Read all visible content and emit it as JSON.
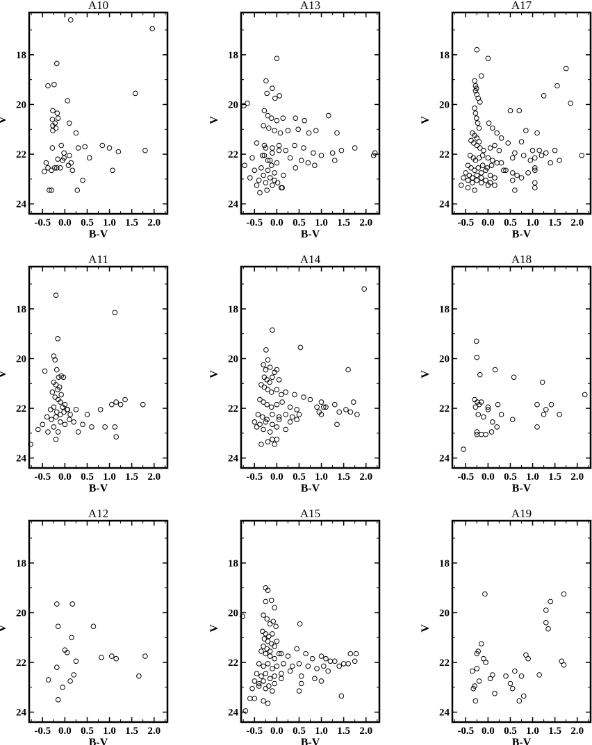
{
  "chart_data": [
    {
      "type": "scatter",
      "title": "A10",
      "xlabel": "B-V",
      "ylabel": "V",
      "xlim": [
        -0.8,
        2.3
      ],
      "ylim": [
        24.4,
        16.3
      ],
      "y_inverted": true,
      "xticks": [
        "-0.5",
        "0.0",
        "0.5",
        "1.0",
        "1.5",
        "2.0"
      ],
      "yticks": [
        "18",
        "20",
        "22",
        "24"
      ],
      "x": [
        0.13,
        1.96,
        -0.18,
        -0.38,
        -0.24,
        0.06,
        -0.27,
        -0.17,
        -0.28,
        -0.27,
        -0.2,
        -0.27,
        -0.22,
        -0.15,
        0.1,
        0.25,
        1.58,
        1.8,
        -0.28,
        -0.08,
        -0.02,
        0.1,
        0.3,
        0.45,
        0.84,
        1,
        1.2,
        0.14,
        -0.02,
        -0.05,
        -0.16,
        -0.42,
        -0.38,
        -0.18,
        -0.46,
        -0.3,
        -0.23,
        0.08,
        -0.1,
        0.17,
        0.55,
        1.07,
        0.4,
        0.28,
        -0.3,
        -0.35
      ],
      "y": [
        16.6,
        16.95,
        18.35,
        19.25,
        19.2,
        19.85,
        20.25,
        20.35,
        20.6,
        20.85,
        20.95,
        21.05,
        20.75,
        20.55,
        20.75,
        21.15,
        19.55,
        21.85,
        21.75,
        21.65,
        21.95,
        22.05,
        21.75,
        21.7,
        21.65,
        21.75,
        21.9,
        22.35,
        22.15,
        22.25,
        22.2,
        22.35,
        22.55,
        22.55,
        22.7,
        22.65,
        22.55,
        22.45,
        22.55,
        22.65,
        22.15,
        22.65,
        23.05,
        23.45,
        23.45,
        23.45
      ]
    },
    {
      "type": "scatter",
      "title": "A13",
      "xlabel": "B-V",
      "ylabel": "V",
      "xlim": [
        -0.8,
        2.3
      ],
      "ylim": [
        24.4,
        16.3
      ],
      "y_inverted": true,
      "xticks": [
        "-0.5",
        "0.0",
        "0.5",
        "1.0",
        "1.5",
        "2.0"
      ],
      "yticks": [
        "18",
        "20",
        "22",
        "24"
      ],
      "x": [
        0,
        -0.24,
        -0.1,
        -0.04,
        -0.22,
        0.06,
        -0.74,
        -0.66,
        -0.28,
        -0.2,
        -0.12,
        0.0,
        0.14,
        0.42,
        0.62,
        1.16,
        -0.3,
        -0.18,
        -0.05,
        0.08,
        0.25,
        0.48,
        0.72,
        0.88,
        1.35,
        1.75,
        2.17,
        -0.45,
        -0.28,
        -0.1,
        0.05,
        0.2,
        0.4,
        0.6,
        0.82,
        1.0,
        1.25,
        1.45,
        2.2,
        -0.55,
        -0.32,
        -0.15,
        0.0,
        0.3,
        0.55,
        0.7,
        0.85,
        1.3,
        -0.72,
        -0.5,
        -0.35,
        -0.2,
        -0.05,
        0.15,
        0.42,
        -0.6,
        -0.4,
        -0.25,
        -0.1,
        0.1,
        -0.15,
        -0.3,
        -0.45,
        -0.05,
        0.12,
        -0.22,
        -0.38,
        0.02,
        -0.12,
        -0.2,
        -0.28,
        -0.1,
        0.05,
        -0.25
      ],
      "y": [
        18.15,
        19.05,
        19.35,
        19.75,
        19.55,
        19.65,
        20.05,
        19.95,
        20.25,
        20.45,
        20.55,
        20.65,
        20.55,
        20.55,
        20.65,
        20.45,
        20.85,
        20.95,
        21.05,
        21.15,
        21.05,
        21.0,
        21.15,
        21.05,
        21.15,
        21.75,
        22.05,
        21.55,
        21.65,
        21.75,
        21.65,
        21.85,
        21.65,
        21.75,
        21.95,
        22.05,
        21.95,
        21.85,
        21.95,
        22.15,
        22.05,
        22.25,
        22.35,
        22.15,
        22.25,
        22.35,
        22.45,
        22.25,
        22.45,
        22.65,
        22.55,
        22.65,
        22.75,
        22.85,
        22.55,
        22.95,
        23.05,
        23.15,
        23.25,
        23.35,
        22.95,
        22.85,
        23.25,
        23.05,
        23.35,
        23.45,
        23.55,
        23.15,
        22.45,
        22.25,
        22.05,
        21.95,
        21.85,
        21.75
      ]
    },
    {
      "type": "scatter",
      "title": "A17",
      "xlabel": "B-V",
      "ylabel": "V",
      "xlim": [
        -0.8,
        2.3
      ],
      "ylim": [
        24.4,
        16.3
      ],
      "y_inverted": true,
      "xticks": [
        "-0.5",
        "0.0",
        "0.5",
        "1.0",
        "1.5",
        "2.0"
      ],
      "yticks": [
        "18",
        "20",
        "22",
        "24"
      ],
      "x": [
        -0.25,
        0,
        -0.15,
        -0.3,
        -0.28,
        -0.26,
        -0.28,
        -0.25,
        -0.22,
        -0.18,
        -0.3,
        -0.28,
        -0.26,
        -0.23,
        -0.2,
        -0.35,
        -0.3,
        -0.25,
        -0.2,
        0.02,
        0.1,
        0.2,
        0.3,
        0.5,
        0.7,
        0.85,
        1.1,
        1.25,
        1.55,
        1.75,
        1.85,
        -0.38,
        -0.32,
        -0.25,
        -0.18,
        -0.1,
        0.05,
        0.15,
        0.25,
        0.45,
        0.6,
        0.75,
        1.0,
        1.15,
        1.3,
        1.5,
        -0.4,
        -0.33,
        -0.28,
        -0.2,
        -0.12,
        0.0,
        0.1,
        0.3,
        0.55,
        0.8,
        0.95,
        1.05,
        1.2,
        1.4,
        1.6,
        2.1,
        -0.45,
        -0.38,
        -0.3,
        -0.22,
        -0.12,
        -0.02,
        0.08,
        0.2,
        0.4,
        0.65,
        0.9,
        1.05,
        -0.5,
        -0.42,
        -0.35,
        -0.25,
        -0.15,
        -0.05,
        0.05,
        0.15,
        0.35,
        0.55,
        0.75,
        1.05,
        -0.55,
        -0.45,
        -0.35,
        -0.25,
        -0.15,
        -0.05,
        0.05,
        0.15,
        0.55,
        1.05,
        -0.6,
        -0.45,
        -0.3,
        -0.15,
        0.0,
        0.6,
        1.05
      ],
      "y": [
        17.8,
        18.15,
        18.85,
        19.05,
        19.25,
        19.35,
        19.45,
        19.6,
        19.75,
        19.9,
        20.15,
        20.35,
        20.55,
        20.75,
        20.95,
        21.15,
        21.25,
        21.35,
        21.5,
        20.75,
        20.95,
        21.15,
        21.35,
        20.25,
        20.25,
        21.05,
        21.15,
        19.65,
        19.25,
        18.55,
        19.95,
        21.45,
        21.55,
        21.65,
        21.75,
        21.85,
        21.75,
        21.65,
        21.85,
        21.55,
        21.95,
        21.5,
        21.85,
        21.85,
        21.95,
        21.85,
        22.05,
        22.15,
        22.25,
        22.15,
        22.05,
        22.15,
        22.25,
        22.35,
        22.15,
        22.05,
        22.25,
        22.15,
        22.05,
        22.35,
        22.25,
        22.05,
        22.45,
        22.55,
        22.65,
        22.55,
        22.45,
        22.55,
        22.45,
        22.35,
        22.65,
        22.85,
        22.75,
        22.55,
        22.75,
        22.85,
        22.95,
        22.85,
        22.75,
        22.65,
        22.85,
        22.95,
        22.65,
        22.75,
        22.95,
        22.65,
        22.95,
        23.05,
        23.15,
        23.05,
        22.95,
        23.05,
        23.15,
        23.25,
        23.05,
        23.15,
        23.25,
        23.35,
        23.45,
        23.15,
        23.25,
        23.45,
        23.35
      ]
    },
    {
      "type": "scatter",
      "title": "A11",
      "xlabel": "B-V",
      "ylabel": "V",
      "xlim": [
        -0.8,
        2.3
      ],
      "ylim": [
        24.4,
        16.3
      ],
      "y_inverted": true,
      "xticks": [
        "-0.5",
        "0.0",
        "0.5",
        "1.0",
        "1.5",
        "2.0"
      ],
      "yticks": [
        "18",
        "20",
        "22",
        "24"
      ],
      "x": [
        -0.2,
        1.12,
        -0.16,
        -0.25,
        -0.22,
        -0.18,
        -0.14,
        -0.08,
        -0.03,
        -0.45,
        -0.25,
        -0.2,
        -0.16,
        -0.12,
        -0.08,
        -0.28,
        -0.22,
        -0.15,
        -0.1,
        -0.05,
        0.0,
        0.06,
        -0.32,
        -0.25,
        -0.18,
        -0.1,
        -0.02,
        0.05,
        0.12,
        0.25,
        0.5,
        0.8,
        1.05,
        1.15,
        1.25,
        1.35,
        1.75,
        -0.4,
        -0.3,
        -0.2,
        -0.1,
        0.0,
        0.1,
        0.2,
        0.4,
        0.6,
        0.9,
        1.12,
        -0.6,
        -0.5,
        -0.38,
        -0.25,
        -0.15,
        0.3,
        -0.78,
        -0.2,
        1.15
      ],
      "y": [
        17.45,
        18.15,
        19.2,
        19.9,
        20.05,
        20.45,
        20.75,
        20.7,
        20.75,
        20.5,
        20.95,
        21.05,
        21.25,
        21.15,
        21.45,
        21.35,
        21.55,
        21.65,
        21.75,
        21.95,
        21.85,
        22.05,
        22.05,
        21.95,
        22.15,
        22.25,
        22.15,
        22.05,
        22.25,
        22.05,
        22.25,
        22.05,
        21.85,
        21.75,
        21.85,
        21.65,
        21.85,
        22.35,
        22.45,
        22.35,
        22.55,
        22.65,
        22.45,
        22.55,
        22.65,
        22.75,
        22.75,
        22.75,
        22.85,
        22.65,
        22.95,
        22.75,
        22.95,
        22.95,
        23.45,
        23.25,
        23.15
      ]
    },
    {
      "type": "scatter",
      "title": "A14",
      "xlabel": "B-V",
      "ylabel": "V",
      "xlim": [
        -0.8,
        2.3
      ],
      "ylim": [
        24.4,
        16.3
      ],
      "y_inverted": true,
      "xticks": [
        "-0.5",
        "0.0",
        "0.5",
        "1.0",
        "1.5",
        "2.0"
      ],
      "yticks": [
        "18",
        "20",
        "22",
        "24"
      ],
      "x": [
        1.96,
        -0.1,
        0.53,
        -0.24,
        -0.2,
        -0.3,
        -0.25,
        -0.15,
        -0.05,
        0.0,
        -0.28,
        -0.22,
        -0.16,
        -0.1,
        0.05,
        -0.35,
        -0.28,
        -0.2,
        -0.12,
        0.0,
        0.1,
        0.2,
        0.4,
        0.6,
        0.75,
        1.0,
        1.1,
        1.3,
        1.6,
        1.72,
        -0.38,
        -0.3,
        -0.22,
        -0.12,
        0.0,
        0.12,
        0.3,
        0.45,
        0.9,
        1.05,
        1.4,
        1.55,
        1.65,
        1.8,
        -0.42,
        -0.32,
        -0.22,
        -0.1,
        0.05,
        0.2,
        0.35,
        0.5,
        0.95,
        1.0,
        -0.5,
        -0.38,
        -0.25,
        -0.1,
        0.05,
        0.3,
        0.45,
        -0.45,
        -0.3,
        -0.15,
        0.0,
        0.2,
        1.35,
        -0.35,
        -0.2,
        -0.1,
        -0.05,
        0.0
      ],
      "y": [
        17.2,
        18.85,
        19.55,
        19.65,
        20.05,
        20.25,
        20.45,
        20.35,
        20.55,
        20.45,
        20.75,
        20.85,
        20.95,
        20.75,
        20.85,
        21.05,
        21.15,
        21.25,
        21.35,
        21.25,
        21.45,
        21.35,
        21.45,
        21.55,
        21.65,
        21.75,
        21.95,
        21.85,
        20.45,
        21.75,
        21.65,
        21.75,
        21.85,
        21.95,
        21.85,
        21.75,
        21.95,
        22.05,
        21.95,
        21.95,
        22.15,
        22.05,
        22.15,
        22.25,
        22.25,
        22.35,
        22.45,
        22.25,
        22.35,
        22.25,
        22.35,
        22.25,
        22.15,
        22.25,
        22.55,
        22.65,
        22.55,
        22.65,
        22.45,
        22.55,
        22.45,
        22.75,
        22.85,
        22.95,
        22.75,
        22.85,
        22.65,
        23.45,
        23.35,
        23.25,
        23.45,
        23.25
      ]
    },
    {
      "type": "scatter",
      "title": "A18",
      "xlabel": "B-V",
      "ylabel": "V",
      "xlim": [
        -0.8,
        2.3
      ],
      "ylim": [
        24.4,
        16.3
      ],
      "y_inverted": true,
      "xticks": [
        "-0.5",
        "0.0",
        "0.5",
        "1.0",
        "1.5",
        "2.0"
      ],
      "yticks": [
        "18",
        "20",
        "22",
        "24"
      ],
      "x": [
        -0.26,
        -0.25,
        -0.18,
        0.16,
        0.58,
        1.22,
        2.17,
        -0.3,
        -0.24,
        -0.2,
        -0.28,
        -0.15,
        0.0,
        0.22,
        1.1,
        1.3,
        1.42,
        -0.22,
        -0.1,
        0.0,
        0.1,
        0.3,
        0.55,
        1.25,
        1.6,
        -0.25,
        -0.15,
        -0.05,
        0.08,
        1.1,
        -0.55,
        -0.25,
        0.2
      ],
      "y": [
        19.3,
        19.95,
        20.65,
        20.45,
        20.75,
        20.95,
        21.45,
        21.65,
        21.75,
        21.85,
        21.95,
        21.75,
        21.95,
        21.85,
        21.85,
        22.05,
        21.85,
        22.25,
        22.35,
        22.05,
        22.55,
        22.25,
        22.45,
        22.25,
        22.25,
        22.95,
        23.05,
        23.05,
        22.95,
        22.75,
        23.65,
        23.05,
        22.75
      ]
    },
    {
      "type": "scatter",
      "title": "A12",
      "xlabel": "B-V",
      "ylabel": "V",
      "xlim": [
        -0.8,
        2.3
      ],
      "ylim": [
        24.4,
        16.3
      ],
      "y_inverted": true,
      "xticks": [
        "-0.5",
        "0.0",
        "0.5",
        "1.0",
        "1.5",
        "2.0"
      ],
      "yticks": [
        "18",
        "20",
        "22",
        "24"
      ],
      "x": [
        -0.18,
        0.17,
        0.64,
        -0.15,
        0.15,
        0.0,
        0.05,
        1.05,
        1.15,
        1.8,
        0.82,
        0.25,
        1.66,
        -0.18,
        0.2,
        0.12,
        -0.05,
        -0.37,
        -0.15
      ],
      "y": [
        19.65,
        19.65,
        20.55,
        20.55,
        21.0,
        21.5,
        21.6,
        21.75,
        21.85,
        21.75,
        21.8,
        21.95,
        22.55,
        22.2,
        22.5,
        22.75,
        23.0,
        22.7,
        23.5
      ]
    },
    {
      "type": "scatter",
      "title": "A15",
      "xlabel": "B-V",
      "ylabel": "V",
      "xlim": [
        -0.8,
        2.3
      ],
      "ylim": [
        24.4,
        16.3
      ],
      "y_inverted": true,
      "xticks": [
        "-0.5",
        "0.0",
        "0.5",
        "1.0",
        "1.5",
        "2.0"
      ],
      "yticks": [
        "18",
        "20",
        "22",
        "24"
      ],
      "x": [
        -0.25,
        -0.2,
        -0.12,
        -0.25,
        -0.05,
        -0.78,
        -0.3,
        -0.22,
        -0.15,
        -0.08,
        -0.02,
        -0.32,
        -0.25,
        -0.18,
        -0.1,
        -0.28,
        -0.2,
        -0.12,
        0.0,
        -0.3,
        -0.22,
        -0.15,
        -0.05,
        0.05,
        0.52,
        -0.35,
        -0.25,
        -0.15,
        -0.05,
        0.1,
        0.25,
        0.45,
        0.65,
        0.8,
        1.0,
        1.1,
        1.2,
        1.3,
        1.5,
        1.65,
        1.78,
        -0.4,
        -0.3,
        -0.2,
        -0.1,
        0.0,
        0.15,
        0.35,
        0.5,
        0.7,
        0.9,
        1.05,
        1.15,
        1.4,
        1.6,
        1.75,
        -0.45,
        -0.35,
        -0.25,
        -0.15,
        -0.05,
        0.1,
        0.3,
        0.55,
        0.85,
        1.0,
        -0.5,
        -0.4,
        -0.3,
        -0.18,
        -0.05,
        0.1,
        0.55,
        -0.55,
        -0.4,
        -0.25,
        -0.1,
        0.5,
        -0.6,
        -0.5,
        -0.3,
        -0.2,
        1.45,
        -0.7
      ],
      "y": [
        19.0,
        19.1,
        19.5,
        19.55,
        19.8,
        20.15,
        20.1,
        20.25,
        20.45,
        20.35,
        20.55,
        20.75,
        20.85,
        20.95,
        20.85,
        21.05,
        21.15,
        21.25,
        21.15,
        21.35,
        21.45,
        21.55,
        21.35,
        21.65,
        20.45,
        21.55,
        21.65,
        21.75,
        21.85,
        21.65,
        21.75,
        21.45,
        21.65,
        21.85,
        21.75,
        21.85,
        21.95,
        21.95,
        22.05,
        21.65,
        21.65,
        22.05,
        22.15,
        22.05,
        22.25,
        22.15,
        22.05,
        22.15,
        22.05,
        22.15,
        22.25,
        22.15,
        22.35,
        22.15,
        22.05,
        21.95,
        22.45,
        22.55,
        22.45,
        22.65,
        22.55,
        22.45,
        22.35,
        22.55,
        22.65,
        22.75,
        22.75,
        22.85,
        22.75,
        22.95,
        22.85,
        22.65,
        22.85,
        23.05,
        22.95,
        23.05,
        23.15,
        23.15,
        23.45,
        23.45,
        23.55,
        23.65,
        23.35,
        23.95
      ]
    },
    {
      "type": "scatter",
      "title": "A19",
      "xlabel": "B-V",
      "ylabel": "V",
      "xlim": [
        -0.8,
        2.3
      ],
      "ylim": [
        24.4,
        16.3
      ],
      "y_inverted": true,
      "xticks": [
        "-0.5",
        "0.0",
        "0.5",
        "1.0",
        "1.5",
        "2.0"
      ],
      "yticks": [
        "18",
        "20",
        "22",
        "24"
      ],
      "x": [
        -0.07,
        1.4,
        1.7,
        1.3,
        1.3,
        1.35,
        -0.15,
        -0.22,
        -0.25,
        -0.1,
        -0.05,
        0.85,
        0.9,
        1.65,
        1.7,
        -0.35,
        -0.25,
        0.1,
        0.4,
        0.6,
        0.75,
        1.15,
        0.05,
        -0.3,
        0.5,
        -0.2,
        -0.33,
        0.55,
        0.8,
        0.15,
        -0.28,
        0.7
      ],
      "y": [
        19.25,
        19.55,
        19.25,
        19.9,
        20.4,
        20.65,
        21.25,
        21.55,
        21.65,
        21.85,
        22.0,
        21.7,
        21.85,
        21.95,
        22.1,
        22.35,
        22.25,
        22.5,
        22.55,
        22.35,
        22.55,
        22.5,
        22.65,
        22.95,
        22.85,
        22.75,
        23.05,
        23.05,
        23.35,
        23.25,
        23.55,
        23.55
      ]
    }
  ]
}
